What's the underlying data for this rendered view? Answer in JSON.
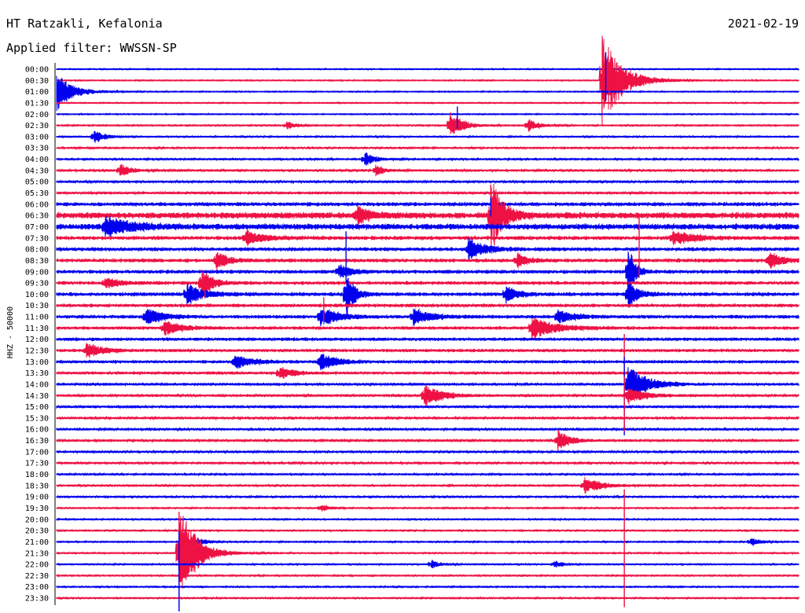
{
  "header": {
    "station": "HT Ratzakli, Kefalonia",
    "filter": "Applied filter: WWSSN-SP",
    "date": "2021-02-19"
  },
  "chart_data": {
    "type": "helicorder",
    "ylabel": "HHZ - 50000",
    "trace_colors": [
      "#0000ee",
      "#ee1144"
    ],
    "row_labels": [
      "00:00",
      "00:30",
      "01:00",
      "01:30",
      "02:00",
      "02:30",
      "03:00",
      "03:30",
      "04:00",
      "04:30",
      "05:00",
      "05:30",
      "06:00",
      "06:30",
      "07:00",
      "07:30",
      "08:00",
      "08:30",
      "09:00",
      "09:30",
      "10:00",
      "10:30",
      "11:00",
      "11:30",
      "12:00",
      "12:30",
      "13:00",
      "13:30",
      "14:00",
      "14:30",
      "15:00",
      "15:30",
      "16:00",
      "16:30",
      "17:00",
      "17:30",
      "18:00",
      "18:30",
      "19:00",
      "19:30",
      "20:00",
      "20:30",
      "21:00",
      "21:30",
      "22:00",
      "22:30",
      "23:00",
      "23:30"
    ],
    "noise_level": [
      0.5,
      0.5,
      0.5,
      0.5,
      0.5,
      0.6,
      0.6,
      0.7,
      0.7,
      0.8,
      0.9,
      1.0,
      1.6,
      2.6,
      2.4,
      1.6,
      1.5,
      1.5,
      1.5,
      1.4,
      1.5,
      1.4,
      1.4,
      1.3,
      1.3,
      1.2,
      1.2,
      1.1,
      1.0,
      1.0,
      1.0,
      0.9,
      0.9,
      0.9,
      0.8,
      0.8,
      0.7,
      0.7,
      0.7,
      0.6,
      0.6,
      0.6,
      0.6,
      0.6,
      0.6,
      0.6,
      0.6,
      0.6
    ],
    "events": [
      {
        "row": 1,
        "t": 0.735,
        "amp": 60,
        "w": 0.025
      },
      {
        "row": 2,
        "t": 0.0,
        "amp": 25,
        "w": 0.02
      },
      {
        "row": 5,
        "t": 0.53,
        "amp": 18,
        "w": 0.015
      },
      {
        "row": 5,
        "t": 0.635,
        "amp": 10,
        "w": 0.012
      },
      {
        "row": 5,
        "t": 0.31,
        "amp": 6,
        "w": 0.01
      },
      {
        "row": 6,
        "t": 0.05,
        "amp": 10,
        "w": 0.012
      },
      {
        "row": 8,
        "t": 0.415,
        "amp": 10,
        "w": 0.012
      },
      {
        "row": 9,
        "t": 0.085,
        "amp": 10,
        "w": 0.012
      },
      {
        "row": 9,
        "t": 0.43,
        "amp": 8,
        "w": 0.01
      },
      {
        "row": 13,
        "t": 0.405,
        "amp": 12,
        "w": 0.015
      },
      {
        "row": 13,
        "t": 0.585,
        "amp": 50,
        "w": 0.015
      },
      {
        "row": 14,
        "t": 0.065,
        "amp": 15,
        "w": 0.03
      },
      {
        "row": 15,
        "t": 0.255,
        "amp": 10,
        "w": 0.02
      },
      {
        "row": 15,
        "t": 0.83,
        "amp": 10,
        "w": 0.025
      },
      {
        "row": 16,
        "t": 0.555,
        "amp": 14,
        "w": 0.02
      },
      {
        "row": 17,
        "t": 0.215,
        "amp": 12,
        "w": 0.015
      },
      {
        "row": 17,
        "t": 0.62,
        "amp": 10,
        "w": 0.012
      },
      {
        "row": 17,
        "t": 0.96,
        "amp": 12,
        "w": 0.015
      },
      {
        "row": 18,
        "t": 0.38,
        "amp": 10,
        "w": 0.015
      },
      {
        "row": 18,
        "t": 0.77,
        "amp": 38,
        "w": 0.008
      },
      {
        "row": 19,
        "t": 0.195,
        "amp": 22,
        "w": 0.012
      },
      {
        "row": 19,
        "t": 0.065,
        "amp": 8,
        "w": 0.015
      },
      {
        "row": 20,
        "t": 0.175,
        "amp": 14,
        "w": 0.02
      },
      {
        "row": 20,
        "t": 0.39,
        "amp": 34,
        "w": 0.01
      },
      {
        "row": 20,
        "t": 0.605,
        "amp": 12,
        "w": 0.015
      },
      {
        "row": 20,
        "t": 0.77,
        "amp": 20,
        "w": 0.012
      },
      {
        "row": 22,
        "t": 0.12,
        "amp": 12,
        "w": 0.02
      },
      {
        "row": 22,
        "t": 0.355,
        "amp": 14,
        "w": 0.02
      },
      {
        "row": 22,
        "t": 0.48,
        "amp": 12,
        "w": 0.02
      },
      {
        "row": 22,
        "t": 0.675,
        "amp": 10,
        "w": 0.018
      },
      {
        "row": 23,
        "t": 0.145,
        "amp": 10,
        "w": 0.02
      },
      {
        "row": 23,
        "t": 0.64,
        "amp": 14,
        "w": 0.03
      },
      {
        "row": 25,
        "t": 0.04,
        "amp": 10,
        "w": 0.02
      },
      {
        "row": 26,
        "t": 0.24,
        "amp": 10,
        "w": 0.02
      },
      {
        "row": 26,
        "t": 0.355,
        "amp": 12,
        "w": 0.02
      },
      {
        "row": 27,
        "t": 0.3,
        "amp": 10,
        "w": 0.015
      },
      {
        "row": 28,
        "t": 0.77,
        "amp": 24,
        "w": 0.025
      },
      {
        "row": 29,
        "t": 0.495,
        "amp": 16,
        "w": 0.02
      },
      {
        "row": 29,
        "t": 0.77,
        "amp": 12,
        "w": 0.02
      },
      {
        "row": 33,
        "t": 0.675,
        "amp": 14,
        "w": 0.015
      },
      {
        "row": 37,
        "t": 0.71,
        "amp": 12,
        "w": 0.02
      },
      {
        "row": 39,
        "t": 0.355,
        "amp": 5,
        "w": 0.01
      },
      {
        "row": 42,
        "t": 0.19,
        "amp": 6,
        "w": 0.01
      },
      {
        "row": 42,
        "t": 0.935,
        "amp": 6,
        "w": 0.01
      },
      {
        "row": 43,
        "t": 0.165,
        "amp": 70,
        "w": 0.02
      },
      {
        "row": 44,
        "t": 0.67,
        "amp": 5,
        "w": 0.01
      },
      {
        "row": 44,
        "t": 0.505,
        "amp": 6,
        "w": 0.01
      }
    ],
    "spikes": [
      {
        "row": 0,
        "t": 0.74,
        "amp": 62
      },
      {
        "row": 1,
        "t": 0.745,
        "amp": 28
      },
      {
        "row": 4,
        "t": 0.54,
        "amp": 28
      },
      {
        "row": 11,
        "t": 0.585,
        "amp": 30
      },
      {
        "row": 12,
        "t": 0.585,
        "amp": 24
      },
      {
        "row": 15,
        "t": 0.785,
        "amp": 78
      },
      {
        "row": 16,
        "t": 0.39,
        "amp": 65
      },
      {
        "row": 19,
        "t": 0.2,
        "amp": 30
      },
      {
        "row": 21,
        "t": 0.36,
        "amp": 30
      },
      {
        "row": 25,
        "t": 0.765,
        "amp": 60
      },
      {
        "row": 28,
        "t": 0.765,
        "amp": 100
      },
      {
        "row": 29,
        "t": 0.765,
        "amp": 70
      },
      {
        "row": 41,
        "t": 0.765,
        "amp": 150
      },
      {
        "row": 43,
        "t": 0.165,
        "amp": 150
      },
      {
        "row": 44,
        "t": 0.165,
        "amp": 120
      }
    ]
  }
}
